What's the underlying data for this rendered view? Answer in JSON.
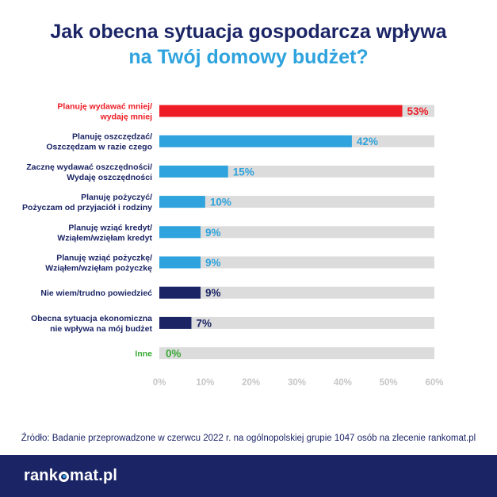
{
  "title": {
    "line1": "Jak obecna sytuacja gospodarcza wpływa",
    "line2": "na Twój domowy budżet?",
    "line1_color": "#1b2566",
    "line2_color": "#2ea3dd"
  },
  "chart_data": {
    "type": "bar",
    "orientation": "horizontal",
    "title": "Jak obecna sytuacja gospodarcza wpływa na Twój domowy budżet?",
    "categories": [
      "Planuję wydawać mniej/ wydaję mniej",
      "Planuję oszczędzać/ Oszczędzam w razie czego",
      "Zacznę wydawać oszczędności/ Wydaję oszczędności",
      "Planuję pożyczyć/ Pożyczam od przyjaciół i rodziny",
      "Planuję wziąć kredyt/ Wziąłem/wzięłam kredyt",
      "Planuję wziąć pożyczkę/ Wziąłem/wzięłam pożyczkę",
      "Nie wiem/trudno powiedzieć",
      "Obecna sytuacja ekonomiczna nie wpływa na mój budżet",
      "Inne"
    ],
    "items": [
      {
        "label_lines": [
          "Planuję wydawać mniej/",
          "wydaję mniej"
        ],
        "value": 53,
        "value_label": "53%",
        "color": "#ee1c25"
      },
      {
        "label_lines": [
          "Planuję oszczędzać/",
          "Oszczędzam w razie czego"
        ],
        "value": 42,
        "value_label": "42%",
        "color": "#2ea3dd"
      },
      {
        "label_lines": [
          "Zacznę wydawać oszczędności/",
          "Wydaję oszczędności"
        ],
        "value": 15,
        "value_label": "15%",
        "color": "#2ea3dd"
      },
      {
        "label_lines": [
          "Planuję pożyczyć/",
          "Pożyczam od przyjaciół i rodziny"
        ],
        "value": 10,
        "value_label": "10%",
        "color": "#2ea3dd"
      },
      {
        "label_lines": [
          "Planuję wziąć kredyt/",
          "Wziąłem/wzięłam kredyt"
        ],
        "value": 9,
        "value_label": "9%",
        "color": "#2ea3dd"
      },
      {
        "label_lines": [
          "Planuję wziąć pożyczkę/",
          "Wziąłem/wzięłam pożyczkę"
        ],
        "value": 9,
        "value_label": "9%",
        "color": "#2ea3dd"
      },
      {
        "label_lines": [
          "Nie wiem/trudno powiedzieć"
        ],
        "value": 9,
        "value_label": "9%",
        "color": "#1b2566"
      },
      {
        "label_lines": [
          "Obecna sytuacja ekonomiczna",
          "nie wpływa na mój budżet"
        ],
        "value": 7,
        "value_label": "7%",
        "color": "#1b2566"
      },
      {
        "label_lines": [
          "Inne"
        ],
        "value": 0,
        "value_label": "0%",
        "color": "#3aaa35"
      }
    ],
    "values": [
      53,
      42,
      15,
      10,
      9,
      9,
      9,
      7,
      0
    ],
    "xlim": [
      0,
      60
    ],
    "x_ticks": [
      "0%",
      "10%",
      "20%",
      "30%",
      "40%",
      "50%",
      "60%"
    ],
    "track_color": "#dcdcdc",
    "grid": false,
    "legend": "none"
  },
  "source": "Źródło: Badanie przeprowadzone w czerwcu 2022 r. na ogólnopolskiej grupie 1047 osób na zlecenie rankomat.pl",
  "logo": {
    "part1": "rank",
    "part2": "mat.pl"
  },
  "colors": {
    "navy": "#1b2566",
    "blue": "#2ea3dd",
    "red": "#ee1c25",
    "green": "#3aaa35",
    "track": "#dcdcdc",
    "tick": "#c6c6c6"
  }
}
